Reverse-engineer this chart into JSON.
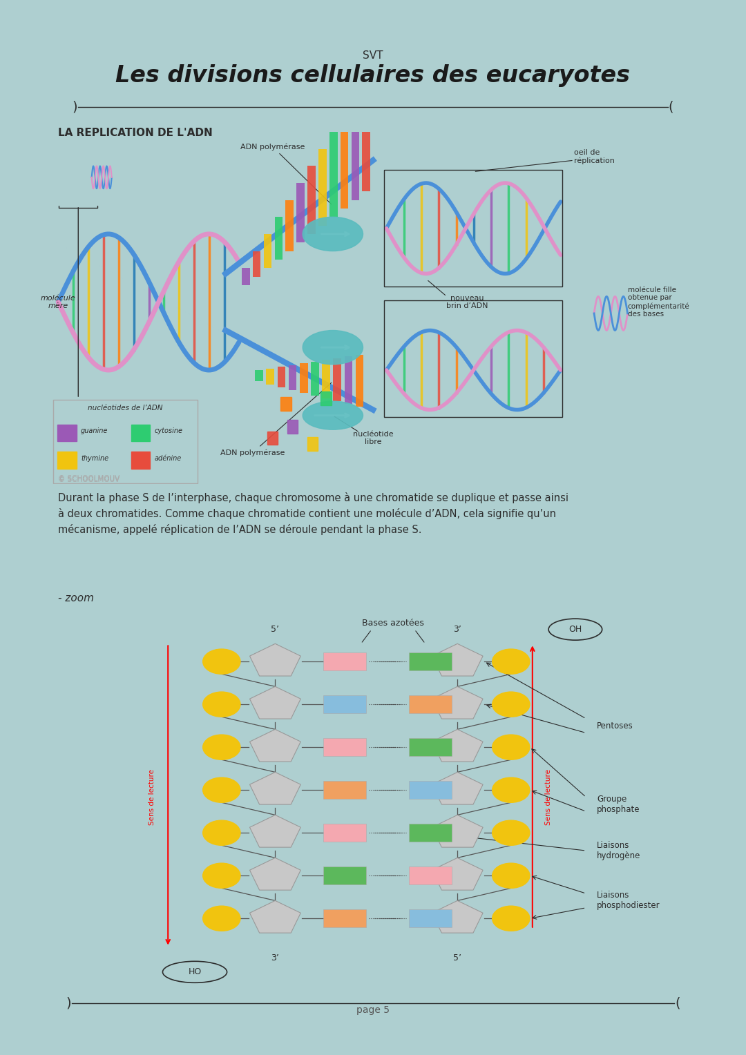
{
  "bg_color": "#aecfd0",
  "page_bg": "#f7f7f5",
  "title_sub": "SVT",
  "title_main": "Les divisions cellulaires des eucaryotes",
  "section1_title": "LA REPLICATION DE L'ADN",
  "copyright": "© SCHOOLMOUV",
  "paragraph": "Durant la phase S de l’interphase, chaque chromosome à une chromatide se duplique et passe ainsi\nà deux chromatides. Comme chaque chromatide contient une molécule d’ADN, cela signifie qu’un\nmécanisme, appelé réplication de l’ADN se déroule pendant la phase S.",
  "zoom_label": "- zoom",
  "page_num": "page 5",
  "dna_labels": {
    "adn_polymerase_top": "ADN polymérase",
    "oeil_replication": "oeil de\nréplication",
    "molecule_mere": "molécule\nmère",
    "nouveau_brin": "nouveau\nbrin d’ADN",
    "molecule_fille": "molécule fille\nobtenue par\ncomplémentarité\ndes bases",
    "nucleotide_libre": "nucléotide\nlibre",
    "adn_polymerase_bot": "ADN polymérase"
  },
  "legend_title": "nucléotides de l’ADN",
  "legend_items": [
    {
      "label": "guanine",
      "color": "#9b59b6"
    },
    {
      "label": "cytosine",
      "color": "#2ecc71"
    },
    {
      "label": "thymine",
      "color": "#f1c40f"
    },
    {
      "label": "adénine",
      "color": "#e74c3c"
    }
  ],
  "zoom_labels": {
    "bases_azotees": "Bases azotées",
    "five_prime_top": "5’",
    "three_prime_top": "3’",
    "oh_top": "OH",
    "pentoses": "Pentoses",
    "groupe_phosphate": "Groupe\nphosphate",
    "liaisons_hydrogene": "Liaisons\nhydrogène",
    "liaisons_phosphodiester": "Liaisons\nphosphodiester",
    "sens_lecture_left": "Sens de lecture",
    "sens_lecture_right": "Sens de lecture",
    "three_prime_bot": "3’",
    "five_prime_bot": "5’",
    "ho_bot": "HO"
  },
  "teal": "#5bbcbf",
  "dark_text": "#2c2c2c",
  "gray_text": "#888888",
  "base_pair_rows": [
    {
      "left": "#f4a8b0",
      "right": "#5cb85c"
    },
    {
      "left": "#87bddd",
      "right": "#f0a060"
    },
    {
      "left": "#f4a8b0",
      "right": "#5cb85c"
    },
    {
      "left": "#f0a060",
      "right": "#87bddd"
    },
    {
      "left": "#f4a8b0",
      "right": "#5cb85c"
    },
    {
      "left": "#5cb85c",
      "right": "#f4a8b0"
    },
    {
      "left": "#f0a060",
      "right": "#87bddd"
    }
  ]
}
